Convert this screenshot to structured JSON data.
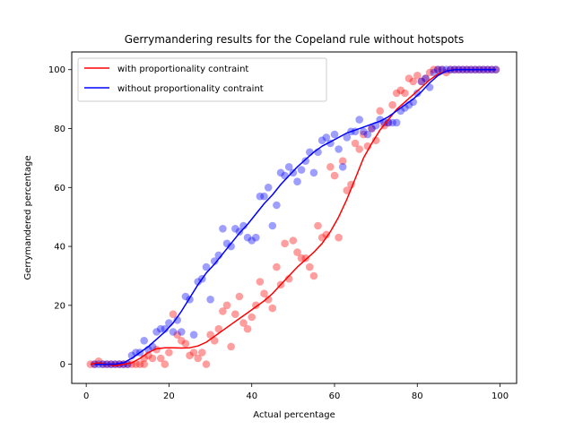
{
  "chart_data": {
    "type": "scatter",
    "title": "Gerrymandering results for the Copeland rule without hotspots",
    "xlabel": "Actual percentage",
    "ylabel": "Gerrymandered percentage",
    "xlim": [
      -3.5,
      104
    ],
    "ylim": [
      -6.5,
      106
    ],
    "xticks": [
      0,
      20,
      40,
      60,
      80,
      100
    ],
    "yticks": [
      0,
      20,
      40,
      60,
      80,
      100
    ],
    "grid": false,
    "legend_position": "upper-left",
    "series": [
      {
        "name": "with proportionality contraint",
        "color": "#ff0000",
        "line": [
          [
            1,
            0
          ],
          [
            3,
            0.5
          ],
          [
            5,
            0
          ],
          [
            7,
            -0.5
          ],
          [
            9,
            0
          ],
          [
            11,
            0.5
          ],
          [
            13,
            2
          ],
          [
            15,
            4
          ],
          [
            17,
            5.3
          ],
          [
            19,
            5.6
          ],
          [
            21,
            5.6
          ],
          [
            23,
            5.5
          ],
          [
            25,
            5.6
          ],
          [
            27,
            6.2
          ],
          [
            29,
            7.5
          ],
          [
            31,
            9.5
          ],
          [
            33,
            11.5
          ],
          [
            35,
            13.5
          ],
          [
            37,
            15.5
          ],
          [
            39,
            17.5
          ],
          [
            41,
            19.5
          ],
          [
            43,
            21.5
          ],
          [
            45,
            24
          ],
          [
            47,
            27
          ],
          [
            49,
            30
          ],
          [
            51,
            33
          ],
          [
            53,
            35.5
          ],
          [
            55,
            38
          ],
          [
            57,
            41
          ],
          [
            59,
            45
          ],
          [
            61,
            50
          ],
          [
            63,
            56
          ],
          [
            65,
            63
          ],
          [
            67,
            70
          ],
          [
            69,
            75
          ],
          [
            71,
            79.5
          ],
          [
            73,
            83
          ],
          [
            75,
            86.5
          ],
          [
            77,
            89
          ],
          [
            79,
            91.5
          ],
          [
            81,
            94
          ],
          [
            83,
            96.5
          ],
          [
            85,
            98.5
          ],
          [
            87,
            99.5
          ],
          [
            89,
            100
          ],
          [
            99,
            100
          ]
        ],
        "points": [
          [
            1,
            0
          ],
          [
            2,
            0
          ],
          [
            3,
            1
          ],
          [
            4,
            0
          ],
          [
            5,
            0
          ],
          [
            6,
            0
          ],
          [
            7,
            0
          ],
          [
            8,
            0
          ],
          [
            9,
            0
          ],
          [
            10,
            0
          ],
          [
            11,
            0
          ],
          [
            12,
            0
          ],
          [
            13,
            0
          ],
          [
            14,
            0
          ],
          [
            14,
            2
          ],
          [
            15,
            3
          ],
          [
            16,
            2
          ],
          [
            17,
            5
          ],
          [
            18,
            2
          ],
          [
            19,
            0
          ],
          [
            20,
            4
          ],
          [
            21,
            17
          ],
          [
            22,
            10
          ],
          [
            23,
            8
          ],
          [
            24,
            7
          ],
          [
            25,
            3
          ],
          [
            26,
            4
          ],
          [
            27,
            2
          ],
          [
            28,
            4
          ],
          [
            29,
            0
          ],
          [
            30,
            10
          ],
          [
            31,
            8
          ],
          [
            32,
            12
          ],
          [
            33,
            18
          ],
          [
            34,
            20
          ],
          [
            35,
            6
          ],
          [
            36,
            17
          ],
          [
            37,
            23
          ],
          [
            38,
            14
          ],
          [
            39,
            12
          ],
          [
            40,
            16
          ],
          [
            41,
            20
          ],
          [
            42,
            28
          ],
          [
            43,
            24
          ],
          [
            44,
            22
          ],
          [
            45,
            19
          ],
          [
            46,
            33
          ],
          [
            47,
            27
          ],
          [
            48,
            41
          ],
          [
            49,
            29
          ],
          [
            50,
            42
          ],
          [
            51,
            38
          ],
          [
            52,
            36
          ],
          [
            53,
            36
          ],
          [
            54,
            33
          ],
          [
            55,
            30
          ],
          [
            56,
            47
          ],
          [
            57,
            43
          ],
          [
            58,
            44
          ],
          [
            59,
            67
          ],
          [
            60,
            64
          ],
          [
            61,
            43
          ],
          [
            62,
            69
          ],
          [
            63,
            59
          ],
          [
            64,
            61
          ],
          [
            65,
            75
          ],
          [
            66,
            73
          ],
          [
            67,
            78
          ],
          [
            68,
            74
          ],
          [
            69,
            80
          ],
          [
            70,
            76
          ],
          [
            71,
            86
          ],
          [
            72,
            81
          ],
          [
            73,
            82
          ],
          [
            74,
            88
          ],
          [
            75,
            92
          ],
          [
            76,
            93
          ],
          [
            77,
            92
          ],
          [
            78,
            97
          ],
          [
            79,
            96
          ],
          [
            80,
            98
          ],
          [
            81,
            96
          ],
          [
            82,
            97
          ],
          [
            83,
            99
          ],
          [
            84,
            100
          ],
          [
            85,
            100
          ],
          [
            86,
            100
          ],
          [
            87,
            99
          ],
          [
            88,
            100
          ],
          [
            89,
            100
          ],
          [
            90,
            100
          ],
          [
            91,
            100
          ],
          [
            92,
            100
          ],
          [
            93,
            100
          ],
          [
            94,
            100
          ],
          [
            95,
            100
          ],
          [
            96,
            100
          ],
          [
            97,
            100
          ],
          [
            98,
            100
          ],
          [
            99,
            100
          ]
        ]
      },
      {
        "name": "without proportionality contraint",
        "color": "#0000ff",
        "line": [
          [
            2,
            0
          ],
          [
            4,
            0
          ],
          [
            7,
            0
          ],
          [
            9,
            0.5
          ],
          [
            11,
            2
          ],
          [
            13,
            4
          ],
          [
            15,
            6
          ],
          [
            17,
            8.5
          ],
          [
            19,
            11
          ],
          [
            21,
            14
          ],
          [
            23,
            18
          ],
          [
            25,
            22.5
          ],
          [
            27,
            27
          ],
          [
            29,
            31
          ],
          [
            31,
            34
          ],
          [
            33,
            37.5
          ],
          [
            35,
            41
          ],
          [
            37,
            44.5
          ],
          [
            39,
            47.5
          ],
          [
            41,
            51
          ],
          [
            43,
            54.5
          ],
          [
            45,
            57.5
          ],
          [
            47,
            61
          ],
          [
            49,
            64
          ],
          [
            51,
            67
          ],
          [
            53,
            69.5
          ],
          [
            55,
            72
          ],
          [
            57,
            74
          ],
          [
            59,
            75.5
          ],
          [
            61,
            77
          ],
          [
            63,
            78.5
          ],
          [
            65,
            79.5
          ],
          [
            67,
            80.5
          ],
          [
            69,
            81.5
          ],
          [
            71,
            82.5
          ],
          [
            73,
            84
          ],
          [
            75,
            86
          ],
          [
            77,
            88
          ],
          [
            79,
            90
          ],
          [
            81,
            92.5
          ],
          [
            83,
            95.5
          ],
          [
            85,
            98
          ],
          [
            87,
            99.5
          ],
          [
            89,
            100
          ],
          [
            99,
            100
          ]
        ],
        "points": [
          [
            2,
            0
          ],
          [
            3,
            0
          ],
          [
            4,
            0
          ],
          [
            5,
            0
          ],
          [
            6,
            0
          ],
          [
            7,
            0
          ],
          [
            8,
            0
          ],
          [
            9,
            0
          ],
          [
            10,
            0
          ],
          [
            11,
            3
          ],
          [
            12,
            4
          ],
          [
            13,
            4
          ],
          [
            14,
            8
          ],
          [
            15,
            5
          ],
          [
            16,
            6
          ],
          [
            17,
            11
          ],
          [
            18,
            12
          ],
          [
            19,
            12
          ],
          [
            20,
            14
          ],
          [
            21,
            11
          ],
          [
            22,
            15
          ],
          [
            23,
            11
          ],
          [
            24,
            23
          ],
          [
            25,
            22
          ],
          [
            26,
            10
          ],
          [
            27,
            28
          ],
          [
            28,
            29
          ],
          [
            29,
            33
          ],
          [
            30,
            22
          ],
          [
            31,
            35
          ],
          [
            32,
            37
          ],
          [
            33,
            46
          ],
          [
            34,
            41
          ],
          [
            35,
            40
          ],
          [
            36,
            46
          ],
          [
            37,
            45
          ],
          [
            38,
            47
          ],
          [
            39,
            43
          ],
          [
            40,
            42
          ],
          [
            41,
            43
          ],
          [
            42,
            57
          ],
          [
            43,
            57
          ],
          [
            44,
            60
          ],
          [
            45,
            47
          ],
          [
            46,
            54
          ],
          [
            47,
            65
          ],
          [
            48,
            64
          ],
          [
            49,
            67
          ],
          [
            50,
            65
          ],
          [
            51,
            62
          ],
          [
            52,
            66
          ],
          [
            53,
            69
          ],
          [
            54,
            72
          ],
          [
            55,
            65
          ],
          [
            56,
            72
          ],
          [
            57,
            76
          ],
          [
            58,
            77
          ],
          [
            59,
            75
          ],
          [
            60,
            78
          ],
          [
            61,
            73
          ],
          [
            62,
            67
          ],
          [
            63,
            77
          ],
          [
            64,
            79
          ],
          [
            65,
            79
          ],
          [
            66,
            83
          ],
          [
            67,
            79
          ],
          [
            68,
            78
          ],
          [
            69,
            80
          ],
          [
            70,
            81
          ],
          [
            71,
            83
          ],
          [
            72,
            82
          ],
          [
            73,
            82
          ],
          [
            74,
            82
          ],
          [
            75,
            82
          ],
          [
            76,
            86
          ],
          [
            77,
            87
          ],
          [
            78,
            88
          ],
          [
            79,
            89
          ],
          [
            80,
            92
          ],
          [
            81,
            96
          ],
          [
            82,
            97
          ],
          [
            83,
            94
          ],
          [
            84,
            99
          ],
          [
            85,
            100
          ],
          [
            86,
            100
          ],
          [
            87,
            100
          ],
          [
            88,
            100
          ],
          [
            89,
            100
          ],
          [
            90,
            100
          ],
          [
            91,
            100
          ],
          [
            92,
            100
          ],
          [
            93,
            100
          ],
          [
            94,
            100
          ],
          [
            95,
            100
          ],
          [
            96,
            100
          ],
          [
            97,
            100
          ],
          [
            98,
            100
          ],
          [
            99,
            100
          ]
        ]
      }
    ]
  }
}
